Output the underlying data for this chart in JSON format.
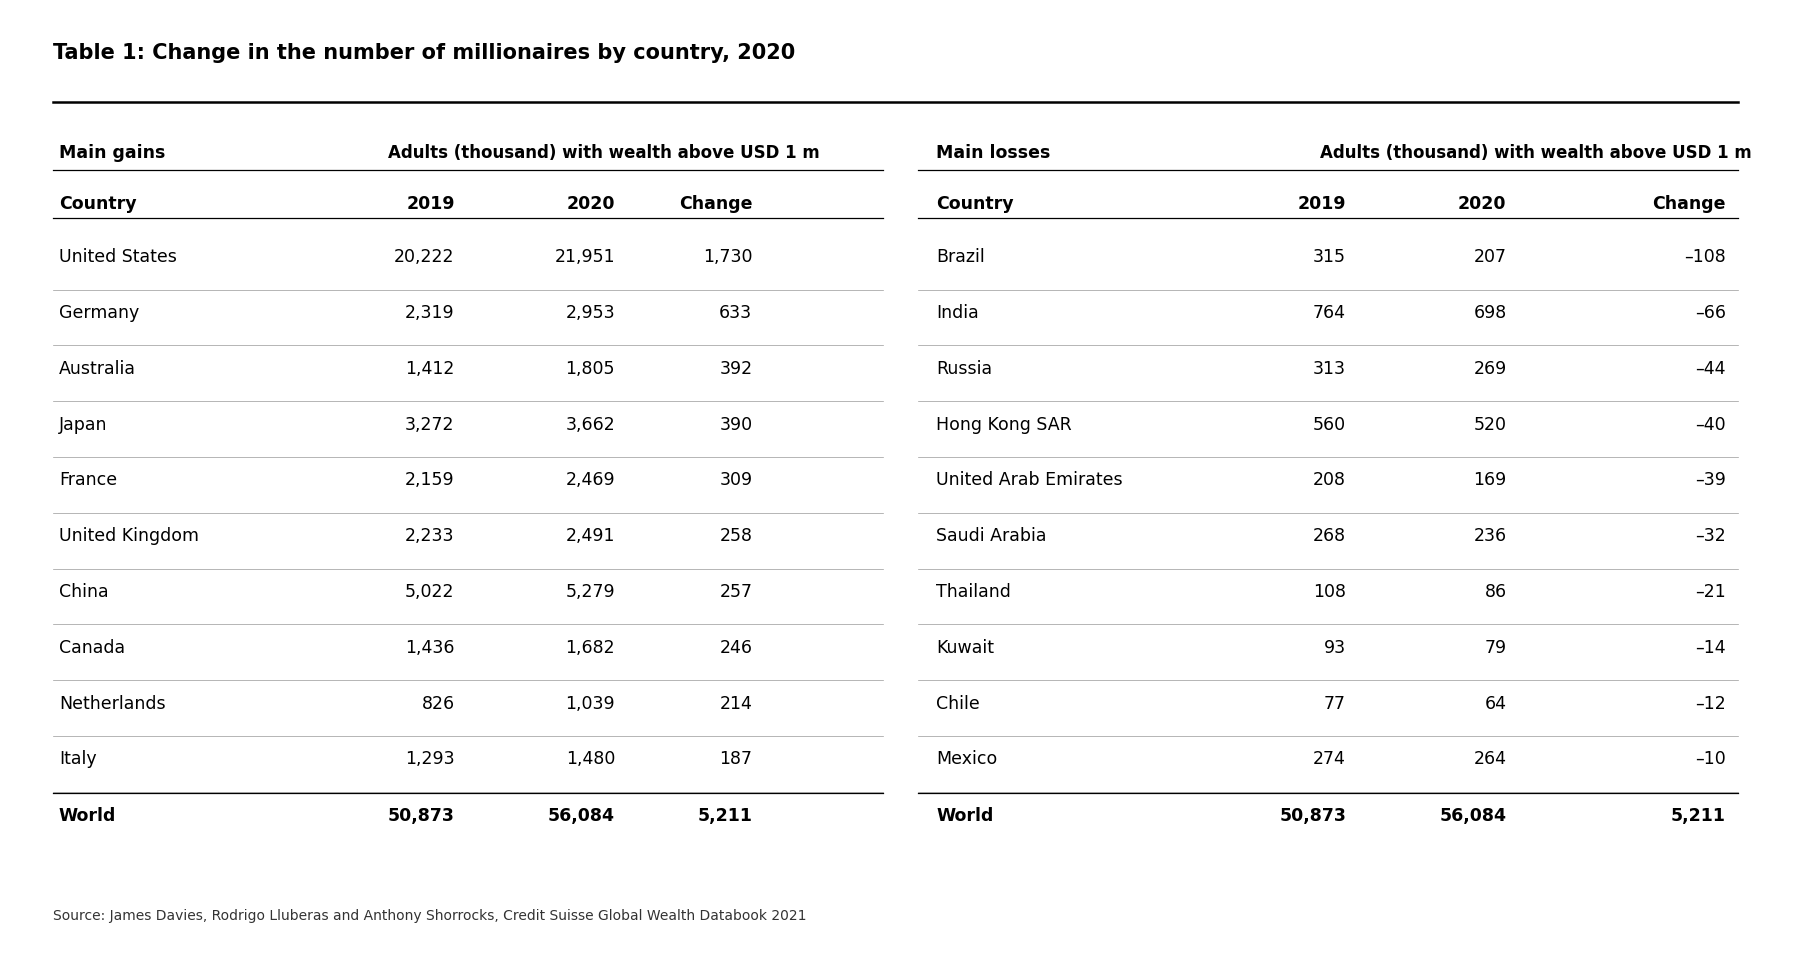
{
  "title": "Table 1: Change in the number of millionaires by country, 2020",
  "source": "Source: James Davies, Rodrigo Lluberas and Anthony Shorrocks, Credit Suisse Global Wealth Databook 2021",
  "gains_header_left": "Main gains",
  "gains_header_mid": "Adults (thousand) with wealth above USD 1 m",
  "losses_header_left": "Main losses",
  "losses_header_mid": "Adults (thousand) with wealth above USD 1 m",
  "col_headers": [
    "Country",
    "2019",
    "2020",
    "Change"
  ],
  "gains_data": [
    [
      "United States",
      "20,222",
      "21,951",
      "1,730"
    ],
    [
      "Germany",
      "2,319",
      "2,953",
      "633"
    ],
    [
      "Australia",
      "1,412",
      "1,805",
      "392"
    ],
    [
      "Japan",
      "3,272",
      "3,662",
      "390"
    ],
    [
      "France",
      "2,159",
      "2,469",
      "309"
    ],
    [
      "United Kingdom",
      "2,233",
      "2,491",
      "258"
    ],
    [
      "China",
      "5,022",
      "5,279",
      "257"
    ],
    [
      "Canada",
      "1,436",
      "1,682",
      "246"
    ],
    [
      "Netherlands",
      "826",
      "1,039",
      "214"
    ],
    [
      "Italy",
      "1,293",
      "1,480",
      "187"
    ]
  ],
  "gains_total": [
    "World",
    "50,873",
    "56,084",
    "5,211"
  ],
  "losses_data": [
    [
      "Brazil",
      "315",
      "207",
      "–108"
    ],
    [
      "India",
      "764",
      "698",
      "–66"
    ],
    [
      "Russia",
      "313",
      "269",
      "–44"
    ],
    [
      "Hong Kong SAR",
      "560",
      "520",
      "–40"
    ],
    [
      "United Arab Emirates",
      "208",
      "169",
      "–39"
    ],
    [
      "Saudi Arabia",
      "268",
      "236",
      "–32"
    ],
    [
      "Thailand",
      "108",
      "86",
      "–21"
    ],
    [
      "Kuwait",
      "93",
      "79",
      "–14"
    ],
    [
      "Chile",
      "77",
      "64",
      "–12"
    ],
    [
      "Mexico",
      "274",
      "264",
      "–10"
    ]
  ],
  "losses_total": [
    "World",
    "50,873",
    "56,084",
    "5,211"
  ],
  "background_color": "#ffffff",
  "text_color": "#000000",
  "title_fontsize": 15,
  "body_fontsize": 12.5,
  "header_fontsize": 12.5
}
